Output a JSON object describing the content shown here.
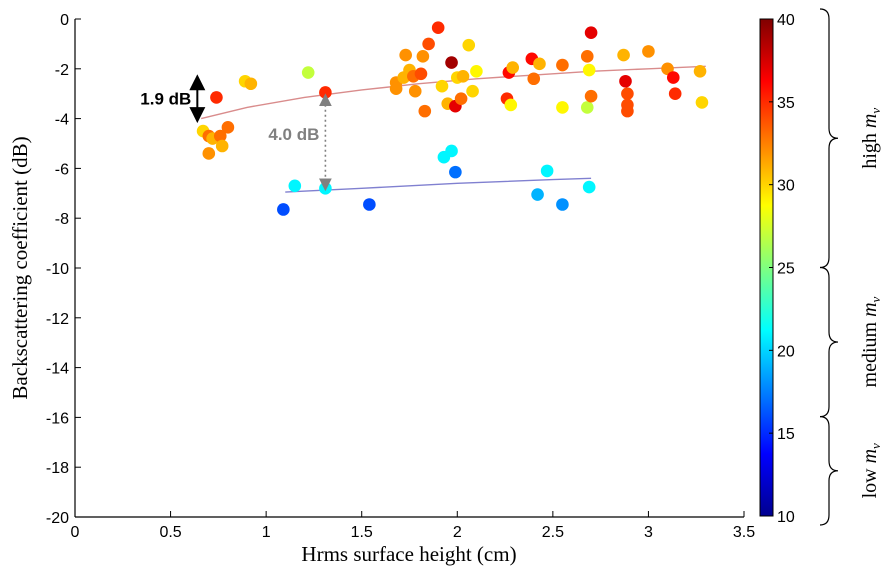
{
  "chart_data": {
    "type": "scatter",
    "xlabel": "Hrms surface height (cm)",
    "ylabel": "Backscattering coefficient (dB)",
    "xlim": [
      0,
      3.5
    ],
    "ylim": [
      -20,
      0
    ],
    "xticks": [
      "0",
      "0.5",
      "1",
      "1.5",
      "2",
      "2.5",
      "3",
      "3.5"
    ],
    "yticks": [
      "0",
      "-2",
      "-4",
      "-6",
      "-8",
      "-10",
      "-12",
      "-14",
      "-16",
      "-18",
      "-20"
    ],
    "grid": false,
    "colorbar": {
      "range": [
        10,
        40
      ],
      "ticks": [
        "40",
        "35",
        "30",
        "25",
        "20",
        "15",
        "10"
      ],
      "colormap": "jet"
    },
    "groups": [
      {
        "label_main": "high",
        "label_var": "m",
        "label_sub": "v",
        "range": [
          25,
          40
        ]
      },
      {
        "label_main": "medium",
        "label_var": "m",
        "label_sub": "v",
        "range": [
          16,
          25
        ]
      },
      {
        "label_main": "low",
        "label_var": "m",
        "label_sub": "v",
        "range": [
          10,
          16
        ]
      }
    ],
    "fit_lines": [
      {
        "color": "#d98c8c",
        "x": [
          0.66,
          0.9,
          1.2,
          1.5,
          1.8,
          2.1,
          2.4,
          2.7,
          3.0,
          3.3
        ],
        "y": [
          -4.0,
          -3.55,
          -3.15,
          -2.85,
          -2.6,
          -2.4,
          -2.25,
          -2.1,
          -2.0,
          -1.9
        ]
      },
      {
        "color": "#8080d0",
        "x": [
          1.1,
          1.5,
          2.0,
          2.5,
          2.7
        ],
        "y": [
          -6.95,
          -6.8,
          -6.6,
          -6.45,
          -6.4
        ]
      }
    ],
    "annotations": [
      {
        "text": "1.9 dB",
        "color": "#000000",
        "x": 0.64,
        "y1": -2.3,
        "y2": -4.1
      },
      {
        "text": "4.0 dB",
        "color": "#808080",
        "x": 1.31,
        "y1": -3.0,
        "y2": -6.9
      }
    ],
    "points": [
      {
        "x": 0.67,
        "y": -4.5,
        "mv": 30
      },
      {
        "x": 0.7,
        "y": -4.7,
        "mv": 33
      },
      {
        "x": 0.72,
        "y": -4.8,
        "mv": 31
      },
      {
        "x": 0.76,
        "y": -4.7,
        "mv": 33
      },
      {
        "x": 0.7,
        "y": -5.4,
        "mv": 32
      },
      {
        "x": 0.77,
        "y": -5.1,
        "mv": 31
      },
      {
        "x": 0.8,
        "y": -4.35,
        "mv": 33
      },
      {
        "x": 0.74,
        "y": -3.15,
        "mv": 35
      },
      {
        "x": 0.89,
        "y": -2.5,
        "mv": 30
      },
      {
        "x": 0.92,
        "y": -2.6,
        "mv": 31
      },
      {
        "x": 1.22,
        "y": -2.15,
        "mv": 27
      },
      {
        "x": 1.31,
        "y": -2.95,
        "mv": 35
      },
      {
        "x": 1.68,
        "y": -2.55,
        "mv": 32
      },
      {
        "x": 1.68,
        "y": -2.8,
        "mv": 32
      },
      {
        "x": 1.72,
        "y": -2.35,
        "mv": 31
      },
      {
        "x": 1.73,
        "y": -1.45,
        "mv": 32
      },
      {
        "x": 1.75,
        "y": -2.05,
        "mv": 31
      },
      {
        "x": 1.77,
        "y": -2.3,
        "mv": 33
      },
      {
        "x": 1.78,
        "y": -2.9,
        "mv": 32
      },
      {
        "x": 1.81,
        "y": -2.2,
        "mv": 34
      },
      {
        "x": 1.82,
        "y": -1.5,
        "mv": 32
      },
      {
        "x": 1.83,
        "y": -3.7,
        "mv": 33
      },
      {
        "x": 1.85,
        "y": -1.0,
        "mv": 34
      },
      {
        "x": 1.9,
        "y": -0.35,
        "mv": 35
      },
      {
        "x": 1.92,
        "y": -2.7,
        "mv": 30
      },
      {
        "x": 1.95,
        "y": -3.4,
        "mv": 31
      },
      {
        "x": 1.97,
        "y": -1.75,
        "mv": 39
      },
      {
        "x": 1.99,
        "y": -3.5,
        "mv": 37
      },
      {
        "x": 2.0,
        "y": -2.35,
        "mv": 30
      },
      {
        "x": 2.02,
        "y": -3.2,
        "mv": 33
      },
      {
        "x": 2.03,
        "y": -2.3,
        "mv": 31
      },
      {
        "x": 2.06,
        "y": -1.05,
        "mv": 30
      },
      {
        "x": 2.08,
        "y": -2.9,
        "mv": 30
      },
      {
        "x": 2.1,
        "y": -2.1,
        "mv": 29
      },
      {
        "x": 2.26,
        "y": -3.2,
        "mv": 35
      },
      {
        "x": 2.27,
        "y": -2.15,
        "mv": 36
      },
      {
        "x": 2.28,
        "y": -3.45,
        "mv": 29
      },
      {
        "x": 2.29,
        "y": -1.95,
        "mv": 31
      },
      {
        "x": 2.39,
        "y": -1.6,
        "mv": 36
      },
      {
        "x": 2.4,
        "y": -2.4,
        "mv": 33
      },
      {
        "x": 2.43,
        "y": -1.8,
        "mv": 31
      },
      {
        "x": 2.55,
        "y": -1.85,
        "mv": 33
      },
      {
        "x": 2.55,
        "y": -3.55,
        "mv": 29
      },
      {
        "x": 2.68,
        "y": -3.55,
        "mv": 27
      },
      {
        "x": 2.68,
        "y": -1.5,
        "mv": 33
      },
      {
        "x": 2.69,
        "y": -2.05,
        "mv": 29
      },
      {
        "x": 2.7,
        "y": -0.55,
        "mv": 37
      },
      {
        "x": 2.7,
        "y": -3.1,
        "mv": 33
      },
      {
        "x": 2.87,
        "y": -1.45,
        "mv": 31
      },
      {
        "x": 2.88,
        "y": -2.5,
        "mv": 37
      },
      {
        "x": 2.89,
        "y": -3.0,
        "mv": 34
      },
      {
        "x": 2.89,
        "y": -3.45,
        "mv": 34
      },
      {
        "x": 2.89,
        "y": -3.7,
        "mv": 34
      },
      {
        "x": 3.0,
        "y": -1.3,
        "mv": 32
      },
      {
        "x": 3.1,
        "y": -2.0,
        "mv": 32
      },
      {
        "x": 3.13,
        "y": -2.35,
        "mv": 36
      },
      {
        "x": 3.14,
        "y": -3.0,
        "mv": 35
      },
      {
        "x": 3.27,
        "y": -2.1,
        "mv": 31
      },
      {
        "x": 3.28,
        "y": -3.35,
        "mv": 30
      },
      {
        "x": 1.09,
        "y": -7.65,
        "mv": 16
      },
      {
        "x": 1.15,
        "y": -6.7,
        "mv": 21
      },
      {
        "x": 1.31,
        "y": -6.8,
        "mv": 21
      },
      {
        "x": 1.54,
        "y": -7.45,
        "mv": 16
      },
      {
        "x": 1.93,
        "y": -5.55,
        "mv": 21
      },
      {
        "x": 1.97,
        "y": -5.3,
        "mv": 21
      },
      {
        "x": 1.99,
        "y": -6.15,
        "mv": 17
      },
      {
        "x": 2.42,
        "y": -7.05,
        "mv": 19
      },
      {
        "x": 2.47,
        "y": -6.1,
        "mv": 21
      },
      {
        "x": 2.55,
        "y": -7.45,
        "mv": 18
      },
      {
        "x": 2.69,
        "y": -6.75,
        "mv": 21
      }
    ]
  }
}
